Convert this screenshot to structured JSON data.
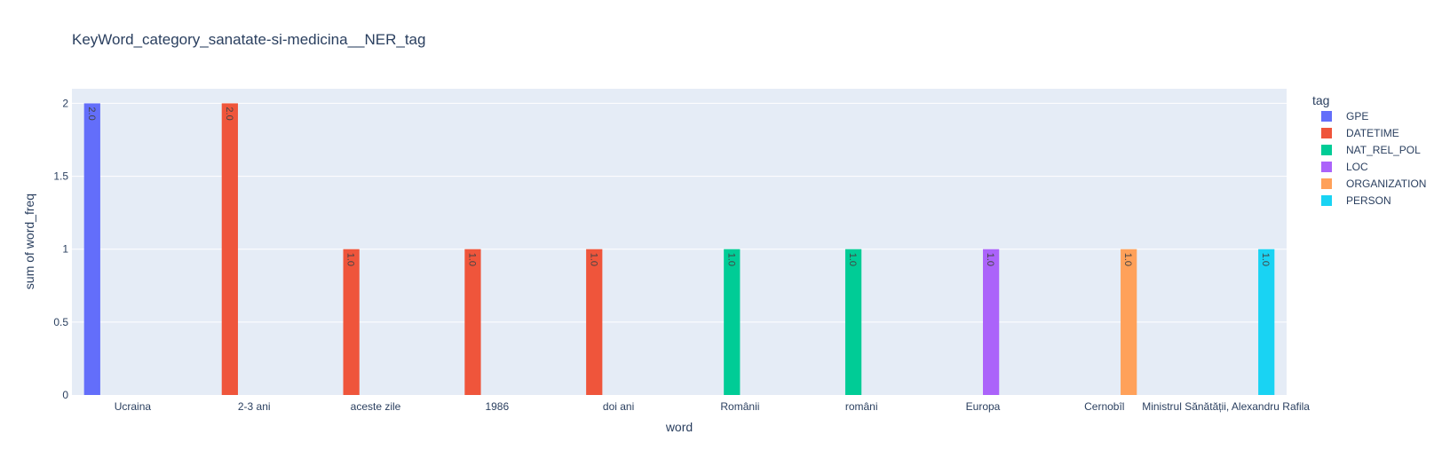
{
  "chart_data": {
    "type": "bar",
    "title": "KeyWord_category_sanatate-si-medicina__NER_tag",
    "xlabel": "word",
    "ylabel": "sum of word_freq",
    "ylim": [
      0,
      2.1
    ],
    "yticks": [
      0,
      0.5,
      1,
      1.5,
      2
    ],
    "ytick_labels": [
      "0",
      "0.5",
      "1",
      "1.5",
      "2"
    ],
    "grid": true,
    "barmode": "group",
    "categories": [
      "Ucraina",
      "2-3 ani",
      "aceste zile",
      "1986",
      "doi ani",
      "Românii",
      "români",
      "Europa",
      "Cernobîl",
      "Ministrul Sănătății, Alexandru Rafila"
    ],
    "legend": {
      "title": "tag",
      "position": "right"
    },
    "series": [
      {
        "name": "GPE",
        "color": "#636efa",
        "points": [
          {
            "category": "Ucraina",
            "value": 2,
            "label": "2.0"
          }
        ]
      },
      {
        "name": "DATETIME",
        "color": "#ef553b",
        "points": [
          {
            "category": "2-3 ani",
            "value": 2,
            "label": "2.0"
          },
          {
            "category": "aceste zile",
            "value": 1,
            "label": "1.0"
          },
          {
            "category": "1986",
            "value": 1,
            "label": "1.0"
          },
          {
            "category": "doi ani",
            "value": 1,
            "label": "1.0"
          }
        ]
      },
      {
        "name": "NAT_REL_POL",
        "color": "#00cc96",
        "points": [
          {
            "category": "Românii",
            "value": 1,
            "label": "1.0"
          },
          {
            "category": "români",
            "value": 1,
            "label": "1.0"
          }
        ]
      },
      {
        "name": "LOC",
        "color": "#ab63fa",
        "points": [
          {
            "category": "Europa",
            "value": 1,
            "label": "1.0"
          }
        ]
      },
      {
        "name": "ORGANIZATION",
        "color": "#ffa15a",
        "points": [
          {
            "category": "Cernobîl",
            "value": 1,
            "label": "1.0"
          }
        ]
      },
      {
        "name": "PERSON",
        "color": "#19d3f3",
        "points": [
          {
            "category": "Ministrul Sănătății, Alexandru Rafila",
            "value": 1,
            "label": "1.0"
          }
        ]
      }
    ]
  }
}
